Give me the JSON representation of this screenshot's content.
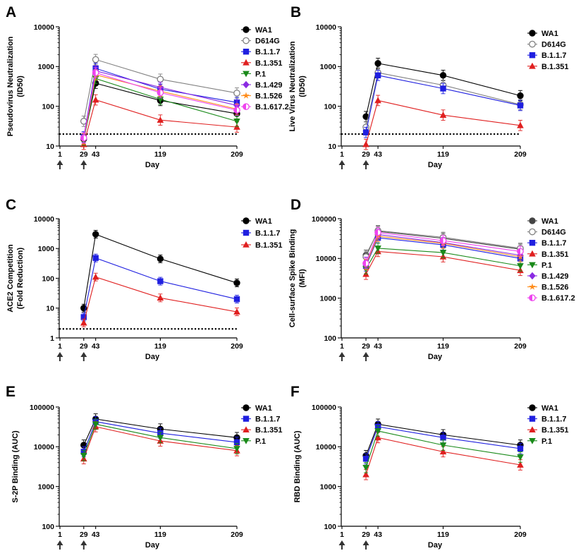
{
  "chart_data": [
    {
      "panel": "A",
      "type": "line",
      "ylabel_lines": [
        "Pseudovirus Neutralization",
        "(ID50)"
      ],
      "xlabel": "Day",
      "x_ticks": [
        1,
        29,
        43,
        119,
        209
      ],
      "y_ticks": [
        10,
        100,
        1000,
        10000
      ],
      "ylim": [
        10,
        10000
      ],
      "y_scale": "log",
      "threshold": 20,
      "dose_days": [
        1,
        29
      ],
      "series": [
        {
          "name": "WA1",
          "color": "#000000",
          "marker": "circle",
          "x": [
            29,
            43,
            119,
            209
          ],
          "y": [
            15,
            380,
            140,
            65
          ]
        },
        {
          "name": "D614G",
          "color": "#808080",
          "marker": "open-circle",
          "x": [
            29,
            43,
            119,
            209
          ],
          "y": [
            42,
            1500,
            480,
            215
          ]
        },
        {
          "name": "B.1.1.7",
          "color": "#1f1fe0",
          "marker": "square",
          "x": [
            29,
            43,
            119,
            209
          ],
          "y": [
            17,
            900,
            270,
            125
          ]
        },
        {
          "name": "B.1.351",
          "color": "#e02020",
          "marker": "triangle-up",
          "x": [
            29,
            43,
            119,
            209
          ],
          "y": [
            11,
            145,
            45,
            30
          ]
        },
        {
          "name": "P.1",
          "color": "#1a8a1a",
          "marker": "triangle-down",
          "x": [
            29,
            43,
            119,
            209
          ],
          "y": [
            14,
            500,
            150,
            42
          ]
        },
        {
          "name": "B.1.429",
          "color": "#8a2be2",
          "marker": "diamond",
          "x": [
            29,
            43,
            119,
            209
          ],
          "y": [
            16,
            780,
            300,
            105
          ]
        },
        {
          "name": "B.1.526",
          "color": "#ff8c1a",
          "marker": "star",
          "x": [
            29,
            43,
            119,
            209
          ],
          "y": [
            15,
            620,
            240,
            85
          ]
        },
        {
          "name": "B.1.617.2",
          "color": "#ee44ee",
          "marker": "half-circle",
          "x": [
            29,
            43,
            119,
            209
          ],
          "y": [
            16,
            700,
            220,
            80
          ]
        }
      ]
    },
    {
      "panel": "B",
      "type": "line",
      "ylabel_lines": [
        "Live Virus Neutralization",
        "(ID50)"
      ],
      "xlabel": "Day",
      "x_ticks": [
        1,
        29,
        43,
        119,
        209
      ],
      "y_ticks": [
        10,
        100,
        1000,
        10000
      ],
      "ylim": [
        10,
        10000
      ],
      "y_scale": "log",
      "threshold": 20,
      "dose_days": [
        1,
        29
      ],
      "series": [
        {
          "name": "WA1",
          "color": "#000000",
          "marker": "circle",
          "x": [
            29,
            43,
            119,
            209
          ],
          "y": [
            55,
            1200,
            600,
            185
          ]
        },
        {
          "name": "D614G",
          "color": "#808080",
          "marker": "open-circle",
          "x": [
            29,
            43,
            119,
            209
          ],
          "y": [
            30,
            700,
            340,
            110
          ]
        },
        {
          "name": "B.1.1.7",
          "color": "#1f1fe0",
          "marker": "square",
          "x": [
            29,
            43,
            119,
            209
          ],
          "y": [
            22,
            600,
            280,
            105
          ]
        },
        {
          "name": "B.1.351",
          "color": "#e02020",
          "marker": "triangle-up",
          "x": [
            29,
            43,
            119,
            209
          ],
          "y": [
            11,
            140,
            60,
            33
          ]
        }
      ]
    },
    {
      "panel": "C",
      "type": "line",
      "ylabel_lines": [
        "ACE2 Competition",
        "(Fold Reduction)"
      ],
      "xlabel": "Day",
      "x_ticks": [
        1,
        29,
        43,
        119,
        209
      ],
      "y_ticks": [
        1,
        10,
        100,
        1000,
        10000
      ],
      "ylim": [
        1,
        10000
      ],
      "y_scale": "log",
      "threshold": 2,
      "dose_days": [
        1,
        29
      ],
      "series": [
        {
          "name": "WA1",
          "color": "#000000",
          "marker": "circle",
          "x": [
            29,
            43,
            119,
            209
          ],
          "y": [
            10,
            3000,
            450,
            70
          ]
        },
        {
          "name": "B.1.1.7",
          "color": "#1f1fe0",
          "marker": "square",
          "x": [
            29,
            43,
            119,
            209
          ],
          "y": [
            5,
            480,
            80,
            20
          ]
        },
        {
          "name": "B.1.351",
          "color": "#e02020",
          "marker": "triangle-up",
          "x": [
            29,
            43,
            119,
            209
          ],
          "y": [
            3.2,
            110,
            22,
            7.5
          ]
        }
      ]
    },
    {
      "panel": "D",
      "type": "line",
      "ylabel_lines": [
        "Cell-surface Spike Binding",
        "(MFI)"
      ],
      "xlabel": "Day",
      "x_ticks": [
        1,
        29,
        43,
        119,
        209
      ],
      "y_ticks": [
        100,
        1000,
        10000,
        100000
      ],
      "ylim": [
        100,
        100000
      ],
      "y_scale": "log",
      "dose_days": [
        1,
        29
      ],
      "series": [
        {
          "name": "WA1",
          "color": "#444444",
          "marker": "circle",
          "x": [
            29,
            43,
            119,
            209
          ],
          "y": [
            12000,
            48000,
            32000,
            17000
          ]
        },
        {
          "name": "D614G",
          "color": "#808080",
          "marker": "open-circle",
          "x": [
            29,
            43,
            119,
            209
          ],
          "y": [
            11000,
            50000,
            34000,
            18000
          ]
        },
        {
          "name": "B.1.1.7",
          "color": "#1f1fe0",
          "marker": "square",
          "x": [
            29,
            43,
            119,
            209
          ],
          "y": [
            6500,
            33000,
            22000,
            10000
          ]
        },
        {
          "name": "B.1.351",
          "color": "#e02020",
          "marker": "triangle-up",
          "x": [
            29,
            43,
            119,
            209
          ],
          "y": [
            4000,
            15000,
            11000,
            5000
          ]
        },
        {
          "name": "P.1",
          "color": "#1a8a1a",
          "marker": "triangle-down",
          "x": [
            29,
            43,
            119,
            209
          ],
          "y": [
            5500,
            18000,
            14000,
            6500
          ]
        },
        {
          "name": "B.1.429",
          "color": "#8a2be2",
          "marker": "diamond",
          "x": [
            29,
            43,
            119,
            209
          ],
          "y": [
            8000,
            40000,
            25000,
            12000
          ]
        },
        {
          "name": "B.1.526",
          "color": "#ff8c1a",
          "marker": "star",
          "x": [
            29,
            43,
            119,
            209
          ],
          "y": [
            7000,
            36000,
            24000,
            11000
          ]
        },
        {
          "name": "B.1.617.2",
          "color": "#ee44ee",
          "marker": "half-circle",
          "x": [
            29,
            43,
            119,
            209
          ],
          "y": [
            7500,
            45000,
            28000,
            15000
          ]
        }
      ]
    },
    {
      "panel": "E",
      "type": "line",
      "ylabel_lines": [
        "S-2P Binding (AUC)"
      ],
      "xlabel": "Day",
      "x_ticks": [
        1,
        29,
        43,
        119,
        209
      ],
      "y_ticks": [
        100,
        1000,
        10000,
        100000
      ],
      "ylim": [
        100,
        100000
      ],
      "y_scale": "log",
      "dose_days": [
        1,
        29
      ],
      "series": [
        {
          "name": "WA1",
          "color": "#000000",
          "marker": "circle",
          "x": [
            29,
            43,
            119,
            209
          ],
          "y": [
            11000,
            50000,
            28000,
            17000
          ]
        },
        {
          "name": "B.1.1.7",
          "color": "#1f1fe0",
          "marker": "square",
          "x": [
            29,
            43,
            119,
            209
          ],
          "y": [
            7500,
            43000,
            22000,
            13000
          ]
        },
        {
          "name": "B.1.351",
          "color": "#e02020",
          "marker": "triangle-up",
          "x": [
            29,
            43,
            119,
            209
          ],
          "y": [
            5000,
            32000,
            14000,
            8000
          ]
        },
        {
          "name": "P.1",
          "color": "#1a8a1a",
          "marker": "triangle-down",
          "x": [
            29,
            43,
            119,
            209
          ],
          "y": [
            6000,
            37000,
            17000,
            9000
          ]
        }
      ]
    },
    {
      "panel": "F",
      "type": "line",
      "ylabel_lines": [
        "RBD Binding (AUC)"
      ],
      "xlabel": "Day",
      "x_ticks": [
        1,
        29,
        43,
        119,
        209
      ],
      "y_ticks": [
        100,
        1000,
        10000,
        100000
      ],
      "ylim": [
        100,
        100000
      ],
      "y_scale": "log",
      "dose_days": [
        1,
        29
      ],
      "series": [
        {
          "name": "WA1",
          "color": "#000000",
          "marker": "circle",
          "x": [
            29,
            43,
            119,
            209
          ],
          "y": [
            6000,
            37000,
            20000,
            11000
          ]
        },
        {
          "name": "B.1.1.7",
          "color": "#1f1fe0",
          "marker": "square",
          "x": [
            29,
            43,
            119,
            209
          ],
          "y": [
            5000,
            32000,
            17000,
            9000
          ]
        },
        {
          "name": "B.1.351",
          "color": "#e02020",
          "marker": "triangle-up",
          "x": [
            29,
            43,
            119,
            209
          ],
          "y": [
            2000,
            17000,
            7500,
            3500
          ]
        },
        {
          "name": "P.1",
          "color": "#1a8a1a",
          "marker": "triangle-down",
          "x": [
            29,
            43,
            119,
            209
          ],
          "y": [
            3000,
            25000,
            11000,
            5500
          ]
        }
      ]
    }
  ]
}
